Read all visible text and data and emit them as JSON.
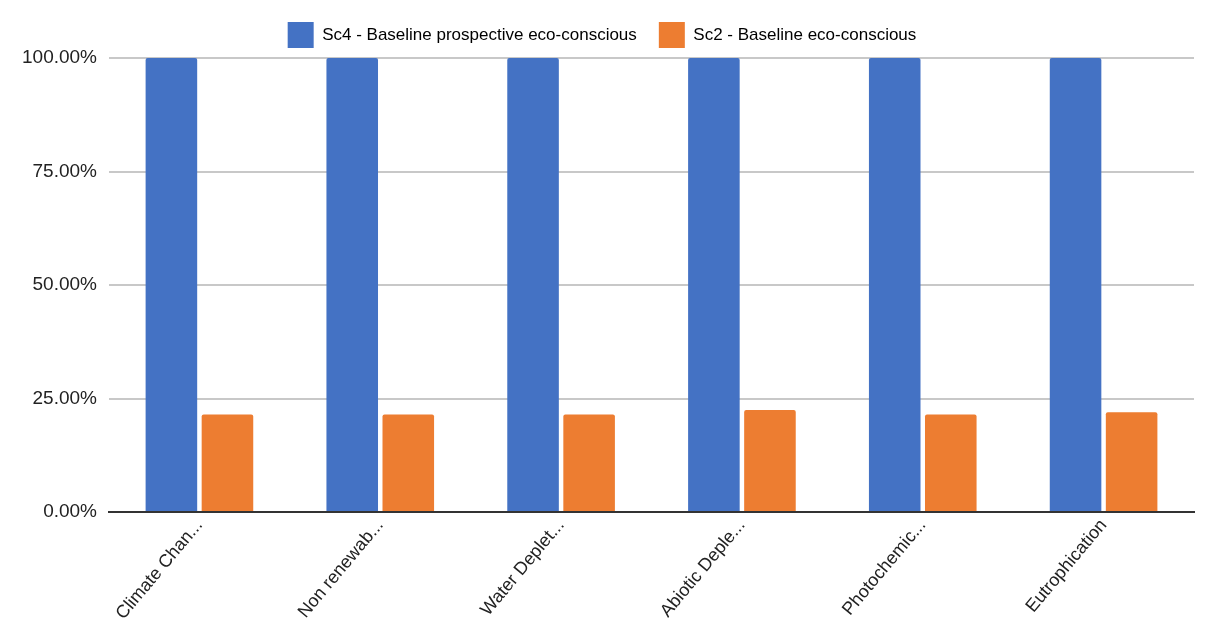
{
  "chart_data": {
    "type": "bar",
    "categories": [
      "Climate Chan...",
      "Non renewab...",
      "Water Deplet...",
      "Abiotic Deple...",
      "Photochemic...",
      "Eutrophication"
    ],
    "series": [
      {
        "name": "Sc4 - Baseline prospective eco-conscious",
        "color": "#4472c4",
        "values": [
          100,
          100,
          100,
          100,
          100,
          100
        ]
      },
      {
        "name": "Sc2 - Baseline eco-conscious",
        "color": "#ed7d31",
        "values": [
          21.5,
          21.5,
          21.5,
          22.5,
          21.5,
          22
        ]
      }
    ],
    "ylim": [
      0,
      100
    ],
    "yticks": [
      {
        "value": 0,
        "label": "0.00%"
      },
      {
        "value": 25,
        "label": "25.00%"
      },
      {
        "value": 50,
        "label": "50.00%"
      },
      {
        "value": 75,
        "label": "75.00%"
      },
      {
        "value": 100,
        "label": "100.00%"
      }
    ],
    "grid": "y",
    "legend": "top"
  }
}
